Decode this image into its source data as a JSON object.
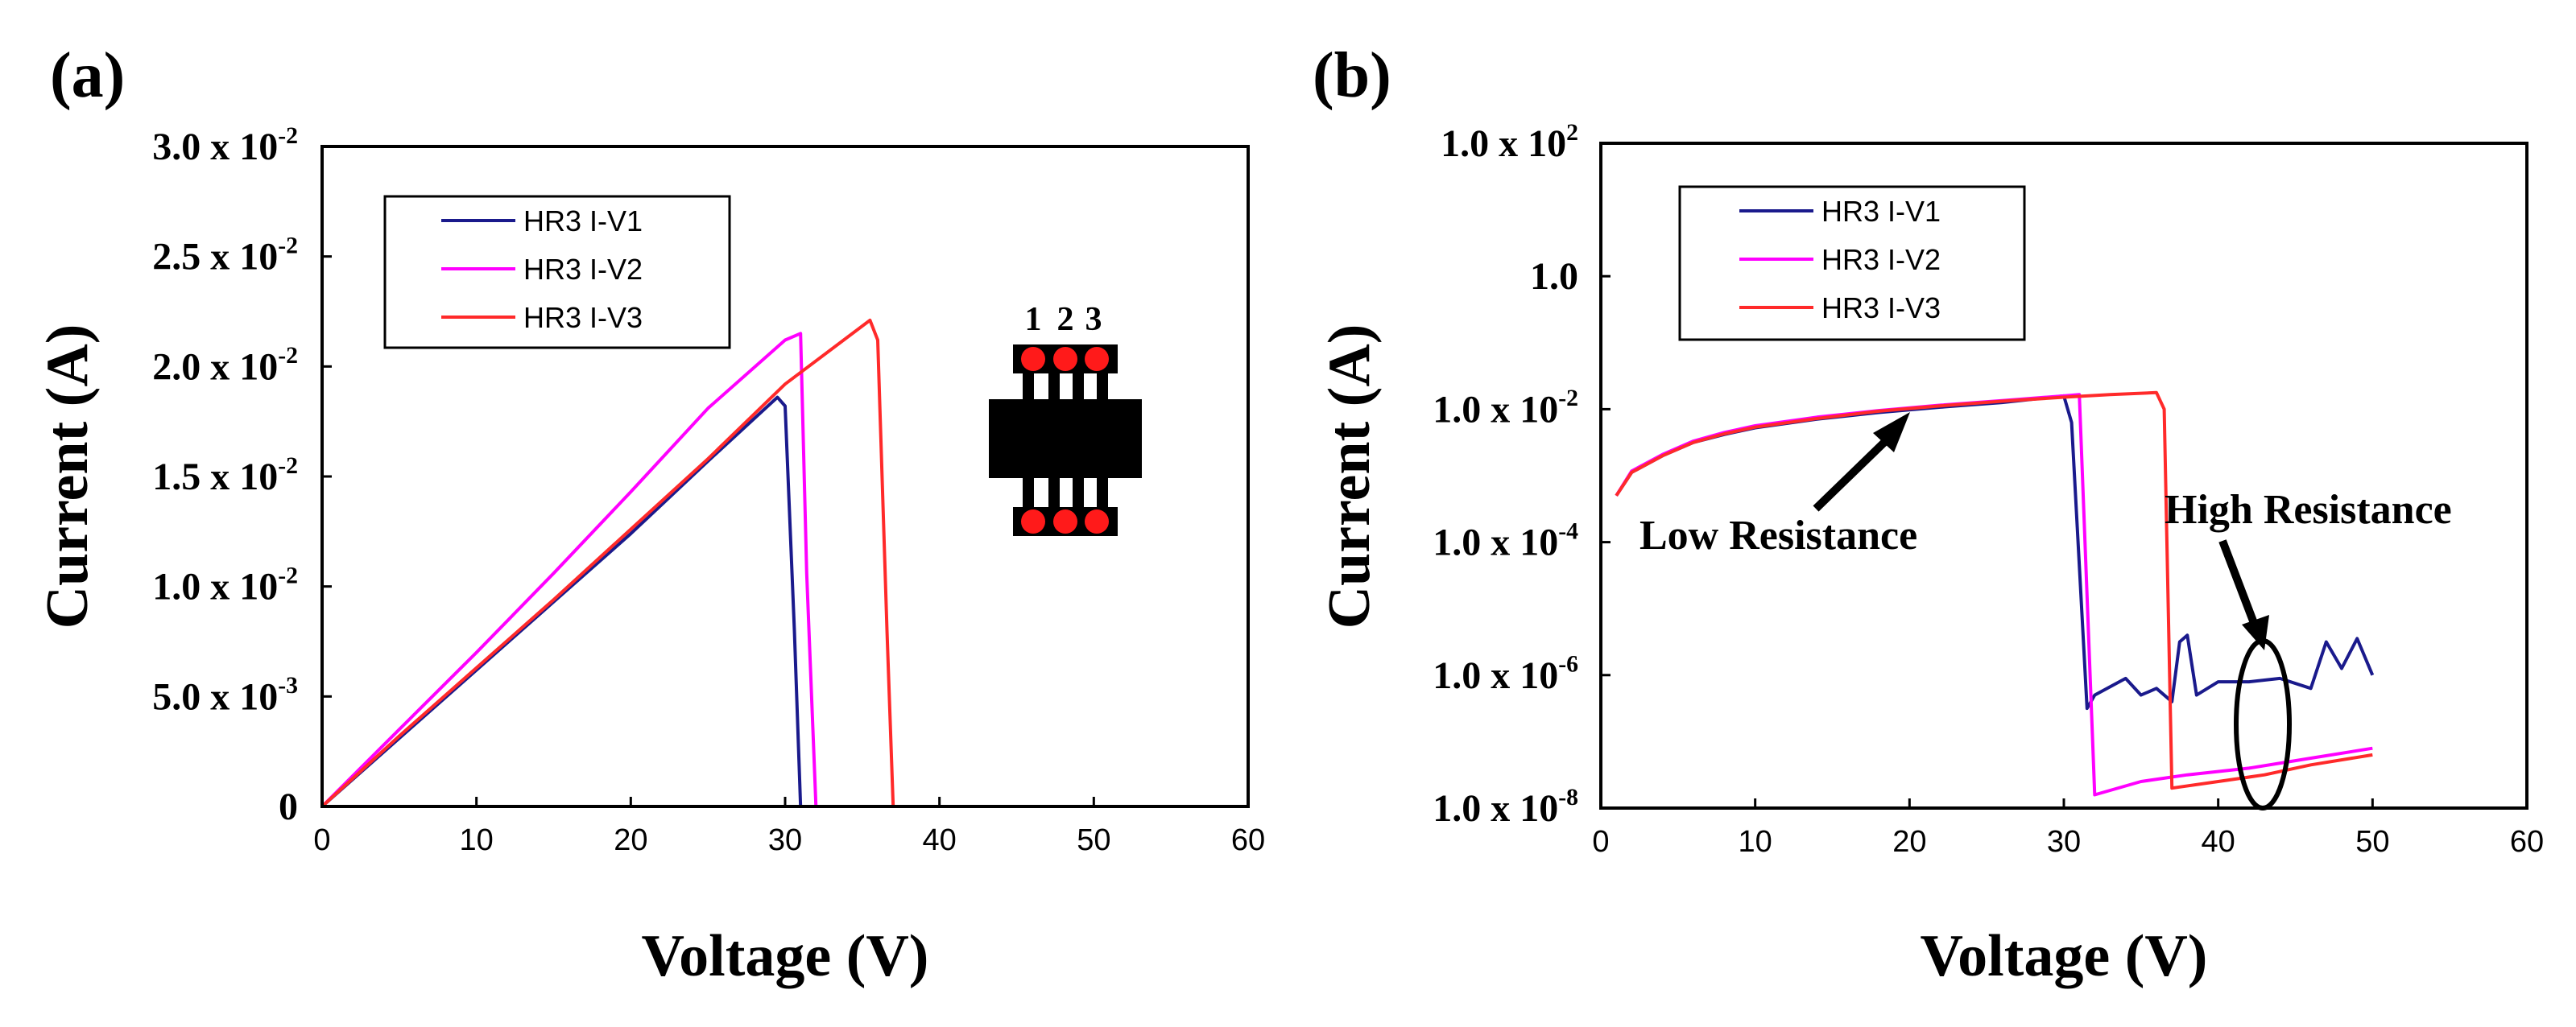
{
  "chart_data": [
    {
      "type": "line",
      "panel_label": "(a)",
      "xlabel": "Voltage (V)",
      "ylabel": "Current (A)",
      "xlim": [
        0,
        60
      ],
      "ylim": [
        0,
        0.03
      ],
      "x_ticks": [
        "0",
        "10",
        "20",
        "30",
        "40",
        "50",
        "60"
      ],
      "y_ticks": [
        {
          "value": 0,
          "base": "0",
          "exp": ""
        },
        {
          "value": 0.005,
          "base": "5.0 x 10",
          "exp": "-3"
        },
        {
          "value": 0.01,
          "base": "1.0 x 10",
          "exp": "-2"
        },
        {
          "value": 0.015,
          "base": "1.5 x 10",
          "exp": "-2"
        },
        {
          "value": 0.02,
          "base": "2.0 x 10",
          "exp": "-2"
        },
        {
          "value": 0.025,
          "base": "2.5 x 10",
          "exp": "-2"
        },
        {
          "value": 0.03,
          "base": "3.0 x 10",
          "exp": "-2"
        }
      ],
      "legend_position": "top-left",
      "series": [
        {
          "name": "HR3 I-V1",
          "color": "#1a1a8c",
          "x": [
            0,
            5,
            10,
            15,
            20,
            25,
            29.5,
            30,
            30.6,
            31,
            50
          ],
          "y": [
            0,
            0.0031,
            0.0062,
            0.0093,
            0.0124,
            0.0157,
            0.0186,
            0.0182,
            0.008,
            0,
            0
          ]
        },
        {
          "name": "HR3 I-V2",
          "color": "#ff00ff",
          "x": [
            0,
            5,
            10,
            15,
            20,
            25,
            30,
            31,
            31.4,
            32,
            50
          ],
          "y": [
            0,
            0.0035,
            0.007,
            0.0106,
            0.0143,
            0.0181,
            0.0212,
            0.0215,
            0.0106,
            0,
            0
          ]
        },
        {
          "name": "HR3 I-V3",
          "color": "#ff2a2a",
          "x": [
            0,
            5,
            10,
            15,
            20,
            25,
            30,
            35.5,
            36,
            36.6,
            37,
            50
          ],
          "y": [
            0,
            0.0032,
            0.0063,
            0.0094,
            0.0126,
            0.0158,
            0.0192,
            0.0221,
            0.0212,
            0.008,
            0,
            0
          ]
        }
      ],
      "inset_labels": [
        "1",
        "2",
        "3"
      ]
    },
    {
      "type": "line",
      "panel_label": "(b)",
      "xlabel": "Voltage (V)",
      "ylabel": "Current (A)",
      "xlim": [
        0,
        60
      ],
      "yscale": "log",
      "ylim_log10": [
        -8,
        2
      ],
      "x_ticks": [
        "0",
        "10",
        "20",
        "30",
        "40",
        "50",
        "60"
      ],
      "y_ticks": [
        {
          "log": -8,
          "base": "1.0 x 10",
          "exp": "-8"
        },
        {
          "log": -6,
          "base": "1.0 x 10",
          "exp": "-6"
        },
        {
          "log": -4,
          "base": "1.0 x 10",
          "exp": "-4"
        },
        {
          "log": -2,
          "base": "1.0 x 10",
          "exp": "-2"
        },
        {
          "log": 0,
          "base": "1.0",
          "exp": ""
        },
        {
          "log": 2,
          "base": "1.0 x 10",
          "exp": "2"
        }
      ],
      "legend_position": "top-left",
      "series": [
        {
          "name": "HR3 I-V1",
          "color": "#1a1a8c",
          "x": [
            1,
            2,
            4,
            6,
            8,
            10,
            14,
            18,
            22,
            26,
            30,
            30.5,
            31.5,
            32,
            34,
            35,
            36,
            37,
            37.5,
            38,
            38.6,
            40,
            42,
            44,
            46,
            47,
            48,
            49,
            50
          ],
          "log10_y": [
            -3.3,
            -2.95,
            -2.7,
            -2.5,
            -2.38,
            -2.28,
            -2.15,
            -2.05,
            -1.97,
            -1.9,
            -1.8,
            -2.2,
            -6.5,
            -6.3,
            -6.05,
            -6.3,
            -6.2,
            -6.4,
            -5.5,
            -5.4,
            -6.3,
            -6.1,
            -6.1,
            -6.05,
            -6.2,
            -5.5,
            -5.9,
            -5.45,
            -6.0
          ]
        },
        {
          "name": "HR3 I-V2",
          "color": "#ff00ff",
          "x": [
            1,
            2,
            4,
            6,
            8,
            10,
            14,
            18,
            22,
            26,
            30,
            31,
            32,
            35,
            38,
            42,
            46,
            50
          ],
          "log10_y": [
            -3.3,
            -2.93,
            -2.68,
            -2.48,
            -2.35,
            -2.25,
            -2.12,
            -2.02,
            -1.94,
            -1.87,
            -1.8,
            -1.78,
            -7.8,
            -7.6,
            -7.5,
            -7.4,
            -7.25,
            -7.1
          ]
        },
        {
          "name": "HR3 I-V3",
          "color": "#ff2a2a",
          "x": [
            1,
            2,
            4,
            6,
            8,
            10,
            14,
            18,
            22,
            26,
            30,
            33,
            36,
            36.5,
            37,
            40,
            43,
            46,
            50
          ],
          "log10_y": [
            -3.3,
            -2.95,
            -2.7,
            -2.5,
            -2.37,
            -2.27,
            -2.14,
            -2.03,
            -1.95,
            -1.88,
            -1.82,
            -1.78,
            -1.75,
            -2.0,
            -7.7,
            -7.6,
            -7.5,
            -7.35,
            -7.2
          ]
        }
      ],
      "annotations": [
        "Low Resistance",
        "High Resistance"
      ]
    }
  ]
}
